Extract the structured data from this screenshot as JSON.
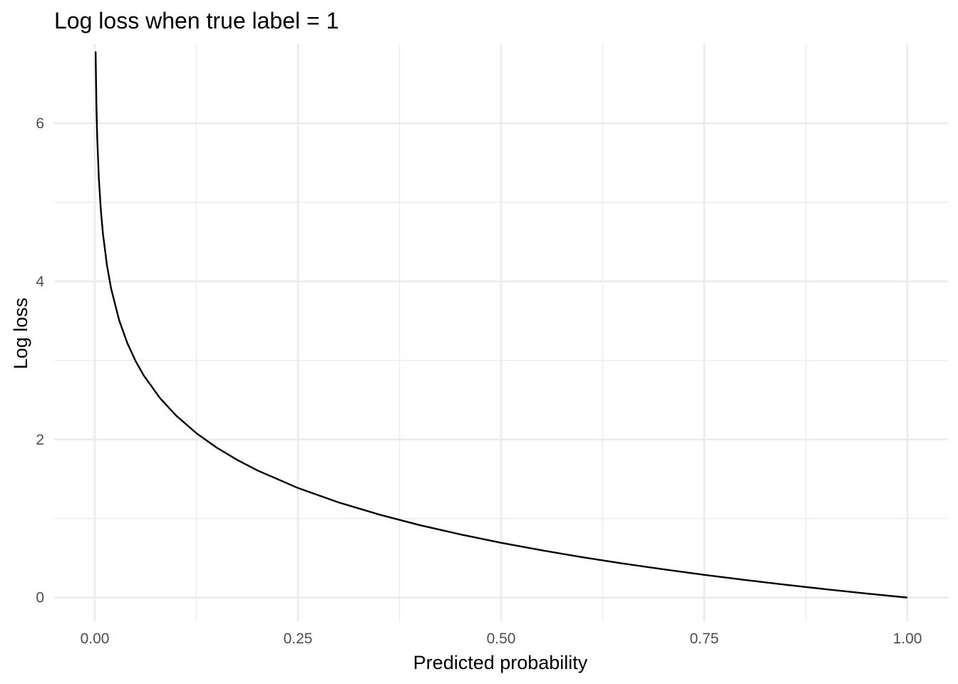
{
  "chart_data": {
    "type": "line",
    "title": "Log loss when true label = 1",
    "xlabel": "Predicted probability",
    "ylabel": "Log loss",
    "xlim": [
      -0.05,
      1.05
    ],
    "ylim": [
      -0.3,
      7.0
    ],
    "x_ticks": [
      {
        "value": 0.0,
        "label": "0.00"
      },
      {
        "value": 0.25,
        "label": "0.25"
      },
      {
        "value": 0.5,
        "label": "0.50"
      },
      {
        "value": 0.75,
        "label": "0.75"
      },
      {
        "value": 1.0,
        "label": "1.00"
      }
    ],
    "x_minor_ticks": [
      0.125,
      0.375,
      0.625,
      0.875
    ],
    "y_ticks": [
      {
        "value": 0,
        "label": "0"
      },
      {
        "value": 2,
        "label": "2"
      },
      {
        "value": 4,
        "label": "4"
      },
      {
        "value": 6,
        "label": "6"
      }
    ],
    "y_minor_ticks": [
      1,
      3,
      5
    ],
    "grid": true,
    "legend": "none",
    "series": [
      {
        "color": "#000000",
        "x": [
          0.001,
          0.002,
          0.003,
          0.005,
          0.0075,
          0.01,
          0.015,
          0.02,
          0.03,
          0.04,
          0.05,
          0.06,
          0.08,
          0.1,
          0.125,
          0.15,
          0.175,
          0.2,
          0.25,
          0.3,
          0.35,
          0.4,
          0.45,
          0.5,
          0.55,
          0.6,
          0.65,
          0.7,
          0.75,
          0.8,
          0.85,
          0.9,
          0.95,
          1.0
        ],
        "y": [
          6.908,
          6.215,
          5.809,
          5.298,
          4.893,
          4.605,
          4.2,
          3.912,
          3.507,
          3.219,
          2.996,
          2.813,
          2.526,
          2.303,
          2.079,
          1.897,
          1.743,
          1.609,
          1.386,
          1.204,
          1.05,
          0.916,
          0.799,
          0.693,
          0.598,
          0.511,
          0.431,
          0.357,
          0.288,
          0.223,
          0.163,
          0.105,
          0.051,
          0.0
        ]
      }
    ]
  }
}
